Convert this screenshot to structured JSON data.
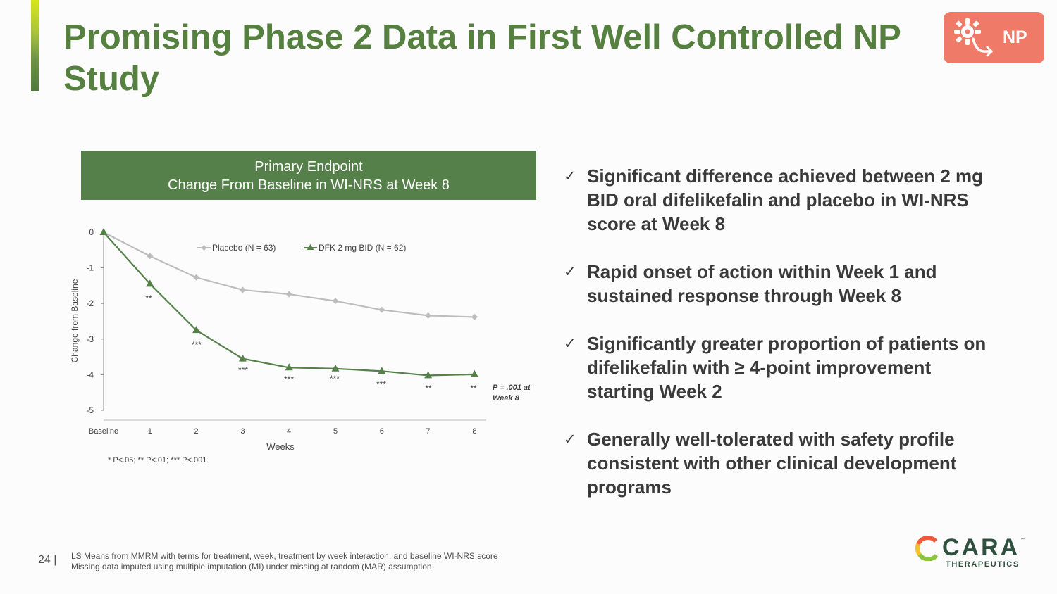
{
  "slide": {
    "title": "Promising Phase 2 Data in First Well Controlled NP Study",
    "badge": "NP",
    "page_number": "24 |",
    "note_line1": "LS Means from MMRM with terms for treatment, week, treatment by week interaction, and baseline WI-NRS score",
    "note_line2": "Missing data imputed using multiple imputation (MI) under missing at random (MAR) assumption"
  },
  "chart_header": {
    "line1": "Primary Endpoint",
    "line2": "Change From Baseline in WI-NRS at Week 8"
  },
  "chart_data": {
    "type": "line",
    "title": "Primary Endpoint — Change From Baseline in WI-NRS at Week 8",
    "xlabel": "Weeks",
    "ylabel": "Change from Baseline",
    "categories": [
      "Baseline",
      "1",
      "2",
      "3",
      "4",
      "5",
      "6",
      "7",
      "8"
    ],
    "ylim": [
      -5,
      0
    ],
    "yticks": [
      "0",
      "-1",
      "-2",
      "-3",
      "-4",
      "-5"
    ],
    "legend_position": "top",
    "series": [
      {
        "name": "Placebo (N = 63)",
        "marker": "diamond",
        "color": "#bdbdbd",
        "values": [
          0,
          -0.67,
          -1.27,
          -1.62,
          -1.74,
          -1.93,
          -2.18,
          -2.34,
          -2.38
        ]
      },
      {
        "name": "DFK 2 mg BID (N = 62)",
        "marker": "triangle",
        "color": "#56804a",
        "values": [
          0,
          -1.45,
          -2.75,
          -3.55,
          -3.8,
          -3.83,
          -3.9,
          -4.02,
          -3.99
        ]
      }
    ],
    "significance": [
      "",
      "**",
      "***",
      "***",
      "***",
      "***",
      "***",
      "**",
      "**"
    ],
    "annotation_line1": "P = .001 at",
    "annotation_line2": "Week 8",
    "footnote": "* P<.05; ** P<.01; *** P<.001"
  },
  "bullets": [
    "Significant difference achieved between 2 mg BID oral difelikefalin and placebo in WI-NRS score at Week 8",
    "Rapid onset of action within Week 1 and sustained response through Week 8",
    "Significantly greater proportion of patients on difelikefalin with ≥ 4-point improvement starting Week 2",
    "Generally well-tolerated with safety profile consistent with other clinical development programs"
  ],
  "check_glyph": "✓",
  "logo": {
    "word": "CARA",
    "sub": "THERAPEUTICS",
    "tm": "™"
  },
  "colors": {
    "title": "#56803f",
    "header": "#56804a",
    "badge": "#ee7a67",
    "placebo": "#bdbdbd",
    "dfk": "#56804a"
  }
}
